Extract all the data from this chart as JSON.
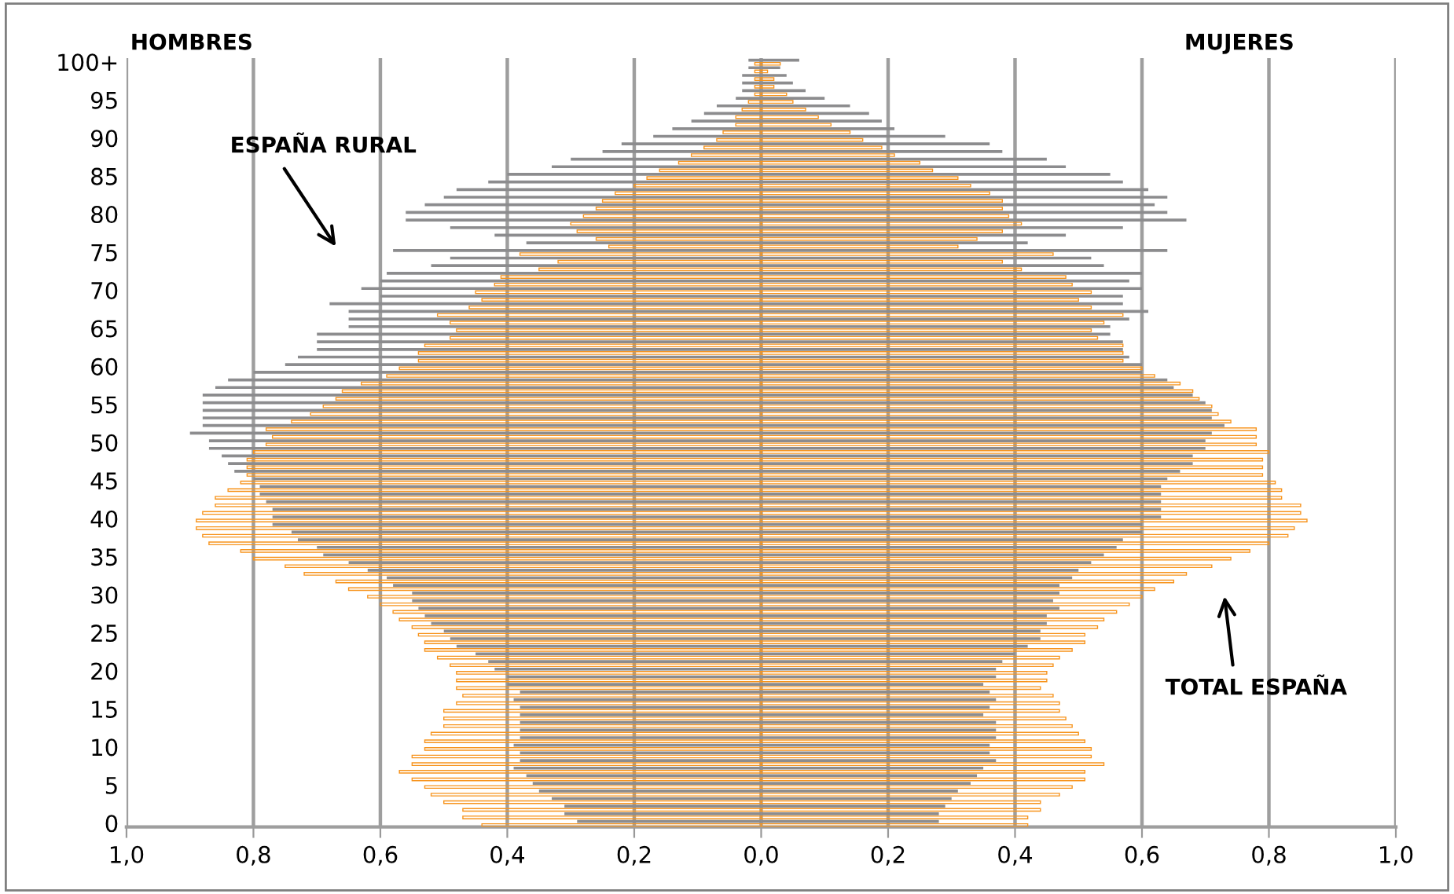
{
  "chart_data": {
    "type": "bar",
    "orientation": "horizontal",
    "categories": [
      "100+",
      null,
      null,
      null,
      null,
      "95",
      null,
      null,
      null,
      null,
      "90",
      null,
      null,
      null,
      null,
      "85",
      null,
      null,
      null,
      null,
      "80",
      null,
      null,
      null,
      null,
      "75",
      null,
      null,
      null,
      null,
      "70",
      null,
      null,
      null,
      null,
      "65",
      null,
      null,
      null,
      null,
      "60",
      null,
      null,
      null,
      null,
      "55",
      null,
      null,
      null,
      null,
      "50",
      null,
      null,
      null,
      null,
      "45",
      null,
      null,
      null,
      null,
      "40",
      null,
      null,
      null,
      null,
      "35",
      null,
      null,
      null,
      null,
      "30",
      null,
      null,
      null,
      null,
      "25",
      null,
      null,
      null,
      null,
      "20",
      null,
      null,
      null,
      null,
      "15",
      null,
      null,
      null,
      null,
      "10",
      null,
      null,
      null,
      null,
      "5",
      null,
      null,
      null,
      null,
      "0"
    ],
    "series": [
      {
        "color": "#8c8c8e",
        "values": [
          -0.02,
          -0.02,
          -0.03,
          -0.03,
          -0.03,
          -0.04,
          -0.07,
          -0.09,
          -0.11,
          -0.14,
          -0.17,
          -0.22,
          -0.25,
          -0.3,
          -0.33,
          -0.4,
          -0.43,
          -0.48,
          -0.5,
          -0.53,
          -0.56,
          -0.56,
          -0.49,
          -0.42,
          -0.37,
          -0.58,
          -0.49,
          -0.52,
          -0.59,
          -0.6,
          -0.63,
          -0.6,
          -0.68,
          -0.65,
          -0.65,
          -0.65,
          -0.7,
          -0.7,
          -0.7,
          -0.73,
          -0.75,
          -0.8,
          -0.84,
          -0.86,
          -0.88,
          -0.88,
          -0.88,
          -0.88,
          -0.88,
          -0.9,
          -0.87,
          -0.87,
          -0.85,
          -0.84,
          -0.83,
          -0.8,
          -0.79,
          -0.79,
          -0.78,
          -0.77,
          -0.77,
          -0.77,
          -0.74,
          -0.73,
          -0.7,
          -0.69,
          -0.65,
          -0.62,
          -0.59,
          -0.58,
          -0.55,
          -0.55,
          -0.54,
          -0.53,
          -0.52,
          -0.5,
          -0.49,
          -0.48,
          -0.45,
          -0.43,
          -0.42,
          -0.4,
          -0.4,
          -0.38,
          -0.39,
          -0.38,
          -0.38,
          -0.38,
          -0.38,
          -0.38,
          -0.39,
          -0.38,
          -0.38,
          -0.39,
          -0.37,
          -0.36,
          -0.35,
          -0.33,
          -0.31,
          -0.31,
          -0.29
        ]
      },
      {
        "color": "#8c8c8e",
        "values": [
          0.06,
          0.03,
          0.04,
          0.05,
          0.07,
          0.1,
          0.14,
          0.17,
          0.19,
          0.21,
          0.29,
          0.36,
          0.38,
          0.45,
          0.48,
          0.55,
          0.57,
          0.61,
          0.64,
          0.62,
          0.64,
          0.67,
          0.57,
          0.48,
          0.42,
          0.64,
          0.52,
          0.54,
          0.6,
          0.58,
          0.6,
          0.57,
          0.57,
          0.61,
          0.58,
          0.55,
          0.55,
          0.57,
          0.57,
          0.58,
          0.6,
          0.6,
          0.64,
          0.65,
          0.68,
          0.7,
          0.71,
          0.71,
          0.73,
          0.71,
          0.7,
          0.7,
          0.68,
          0.68,
          0.66,
          0.64,
          0.63,
          0.63,
          0.63,
          0.63,
          0.63,
          0.6,
          0.6,
          0.57,
          0.56,
          0.54,
          0.52,
          0.5,
          0.49,
          0.47,
          0.47,
          0.46,
          0.47,
          0.45,
          0.45,
          0.44,
          0.44,
          0.42,
          0.4,
          0.38,
          0.37,
          0.37,
          0.35,
          0.36,
          0.37,
          0.36,
          0.35,
          0.37,
          0.37,
          0.37,
          0.36,
          0.36,
          0.37,
          0.35,
          0.34,
          0.33,
          0.31,
          0.3,
          0.29,
          0.28,
          0.28
        ]
      },
      {
        "color": "#f7941d",
        "values": [
          -0.01,
          -0.01,
          -0.01,
          -0.01,
          -0.01,
          -0.02,
          -0.03,
          -0.04,
          -0.04,
          -0.06,
          -0.07,
          -0.09,
          -0.11,
          -0.13,
          -0.16,
          -0.18,
          -0.2,
          -0.23,
          -0.25,
          -0.26,
          -0.28,
          -0.3,
          -0.29,
          -0.26,
          -0.24,
          -0.38,
          -0.32,
          -0.35,
          -0.41,
          -0.42,
          -0.45,
          -0.44,
          -0.46,
          -0.51,
          -0.49,
          -0.48,
          -0.49,
          -0.53,
          -0.54,
          -0.54,
          -0.57,
          -0.59,
          -0.63,
          -0.66,
          -0.67,
          -0.69,
          -0.71,
          -0.74,
          -0.78,
          -0.77,
          -0.78,
          -0.8,
          -0.81,
          -0.81,
          -0.81,
          -0.82,
          -0.84,
          -0.86,
          -0.86,
          -0.88,
          -0.89,
          -0.89,
          -0.88,
          -0.87,
          -0.82,
          -0.8,
          -0.75,
          -0.72,
          -0.67,
          -0.65,
          -0.62,
          -0.6,
          -0.58,
          -0.57,
          -0.55,
          -0.54,
          -0.53,
          -0.53,
          -0.51,
          -0.49,
          -0.48,
          -0.48,
          -0.48,
          -0.47,
          -0.48,
          -0.5,
          -0.5,
          -0.5,
          -0.52,
          -0.53,
          -0.53,
          -0.55,
          -0.55,
          -0.57,
          -0.55,
          -0.53,
          -0.52,
          -0.5,
          -0.47,
          -0.47,
          -0.44
        ]
      },
      {
        "color": "#f7941d",
        "values": [
          0.03,
          0.01,
          0.02,
          0.02,
          0.04,
          0.05,
          0.07,
          0.09,
          0.11,
          0.14,
          0.16,
          0.19,
          0.21,
          0.25,
          0.27,
          0.31,
          0.33,
          0.36,
          0.38,
          0.38,
          0.39,
          0.41,
          0.38,
          0.34,
          0.31,
          0.46,
          0.38,
          0.41,
          0.48,
          0.49,
          0.52,
          0.5,
          0.52,
          0.57,
          0.54,
          0.52,
          0.53,
          0.57,
          0.57,
          0.57,
          0.6,
          0.62,
          0.66,
          0.68,
          0.69,
          0.71,
          0.72,
          0.74,
          0.78,
          0.78,
          0.78,
          0.8,
          0.79,
          0.79,
          0.79,
          0.81,
          0.82,
          0.82,
          0.85,
          0.85,
          0.86,
          0.84,
          0.83,
          0.8,
          0.77,
          0.74,
          0.71,
          0.67,
          0.65,
          0.62,
          0.6,
          0.58,
          0.56,
          0.54,
          0.53,
          0.51,
          0.51,
          0.49,
          0.47,
          0.46,
          0.45,
          0.45,
          0.44,
          0.46,
          0.47,
          0.47,
          0.48,
          0.49,
          0.5,
          0.51,
          0.52,
          0.52,
          0.54,
          0.51,
          0.51,
          0.49,
          0.47,
          0.44,
          0.44,
          0.42,
          0.42
        ]
      }
    ],
    "xlim": [
      -1,
      1
    ],
    "xticks": [
      {
        "value": -1,
        "label": "1,0"
      },
      {
        "value": -0.8,
        "label": "0,8"
      },
      {
        "value": -0.6,
        "label": "0,6"
      },
      {
        "value": -0.4,
        "label": "0,4"
      },
      {
        "value": -0.2,
        "label": "0,2"
      },
      {
        "value": 0,
        "label": "0,0"
      },
      {
        "value": 0.2,
        "label": "0,2"
      },
      {
        "value": 0.4,
        "label": "0,4"
      },
      {
        "value": 0.6,
        "label": "0,6"
      },
      {
        "value": 0.8,
        "label": "0,8"
      },
      {
        "value": 1,
        "label": "1,0"
      }
    ],
    "grid": "x",
    "legend": false,
    "annotations": [
      "HOMBRES",
      "MUJERES",
      "ESPAÑA RURAL",
      "TOTAL ESPAÑA"
    ]
  }
}
